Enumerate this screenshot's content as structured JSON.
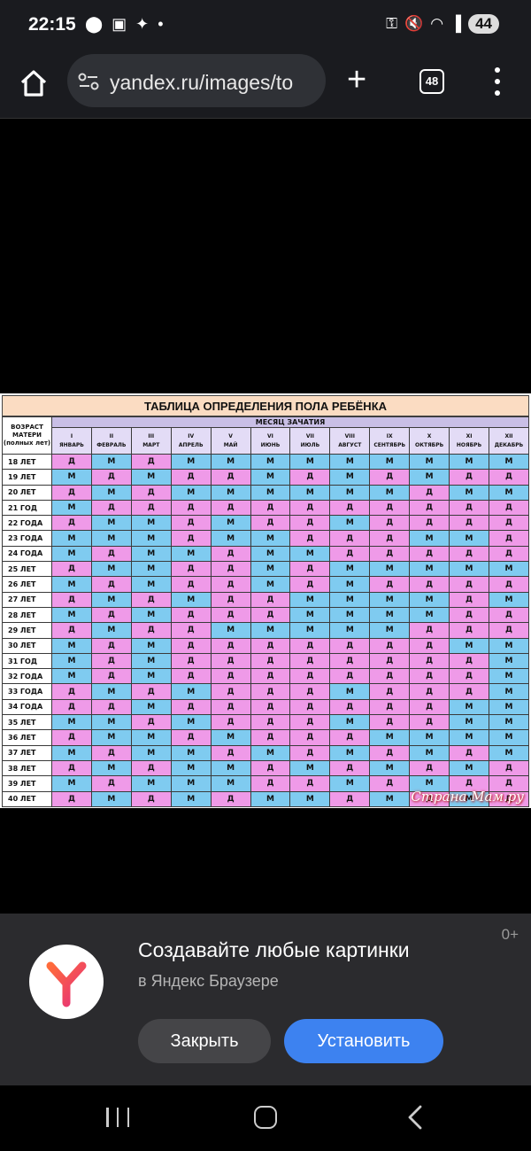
{
  "status_bar": {
    "time": "22:15",
    "battery": "44",
    "left_icons": [
      "multi-dot-icon",
      "screenshot-icon",
      "bird-icon",
      "dot-icon"
    ],
    "right_icons": [
      "key-icon",
      "mute-icon",
      "wifi-icon",
      "signal-icon"
    ]
  },
  "browser": {
    "url": "yandex.ru/images/to",
    "tabs_count": "48"
  },
  "chart": {
    "title": "ТАБЛИЦА ОПРЕДЕЛЕНИЯ ПОЛА РЕБЁНКА",
    "age_header": "ВОЗРАСТ МАТЕРИ (полных лет)",
    "month_header": "МЕСЯЦ ЗАЧАТИЯ",
    "months": [
      {
        "num": "I",
        "name": "ЯНВАРЬ"
      },
      {
        "num": "II",
        "name": "ФЕВРАЛЬ"
      },
      {
        "num": "III",
        "name": "МАРТ"
      },
      {
        "num": "IV",
        "name": "АПРЕЛЬ"
      },
      {
        "num": "V",
        "name": "МАЙ"
      },
      {
        "num": "VI",
        "name": "ИЮНЬ"
      },
      {
        "num": "VII",
        "name": "ИЮЛЬ"
      },
      {
        "num": "VIII",
        "name": "АВГУСТ"
      },
      {
        "num": "IX",
        "name": "СЕНТЯБРЬ"
      },
      {
        "num": "X",
        "name": "ОКТЯБРЬ"
      },
      {
        "num": "XI",
        "name": "НОЯБРЬ"
      },
      {
        "num": "XII",
        "name": "ДЕКАБРЬ"
      }
    ],
    "rows": [
      {
        "age": "18 ЛЕТ",
        "cells": [
          "Д",
          "М",
          "Д",
          "М",
          "М",
          "М",
          "М",
          "М",
          "М",
          "М",
          "М",
          "М"
        ]
      },
      {
        "age": "19 ЛЕТ",
        "cells": [
          "М",
          "Д",
          "М",
          "Д",
          "Д",
          "М",
          "Д",
          "М",
          "Д",
          "М",
          "Д",
          "Д"
        ]
      },
      {
        "age": "20 ЛЕТ",
        "cells": [
          "Д",
          "М",
          "Д",
          "М",
          "М",
          "М",
          "М",
          "М",
          "М",
          "Д",
          "М",
          "М"
        ]
      },
      {
        "age": "21 ГОД",
        "cells": [
          "М",
          "Д",
          "Д",
          "Д",
          "Д",
          "Д",
          "Д",
          "Д",
          "Д",
          "Д",
          "Д",
          "Д"
        ]
      },
      {
        "age": "22 ГОДА",
        "cells": [
          "Д",
          "М",
          "М",
          "Д",
          "М",
          "Д",
          "Д",
          "М",
          "Д",
          "Д",
          "Д",
          "Д"
        ]
      },
      {
        "age": "23 ГОДА",
        "cells": [
          "М",
          "М",
          "М",
          "Д",
          "М",
          "М",
          "Д",
          "Д",
          "Д",
          "М",
          "М",
          "Д"
        ]
      },
      {
        "age": "24 ГОДА",
        "cells": [
          "М",
          "Д",
          "М",
          "М",
          "Д",
          "М",
          "М",
          "Д",
          "Д",
          "Д",
          "Д",
          "Д"
        ]
      },
      {
        "age": "25 ЛЕТ",
        "cells": [
          "Д",
          "М",
          "М",
          "Д",
          "Д",
          "М",
          "Д",
          "М",
          "М",
          "М",
          "М",
          "М"
        ]
      },
      {
        "age": "26 ЛЕТ",
        "cells": [
          "М",
          "Д",
          "М",
          "Д",
          "Д",
          "М",
          "Д",
          "М",
          "Д",
          "Д",
          "Д",
          "Д"
        ]
      },
      {
        "age": "27 ЛЕТ",
        "cells": [
          "Д",
          "М",
          "Д",
          "М",
          "Д",
          "Д",
          "М",
          "М",
          "М",
          "М",
          "Д",
          "М"
        ]
      },
      {
        "age": "28 ЛЕТ",
        "cells": [
          "М",
          "Д",
          "М",
          "Д",
          "Д",
          "Д",
          "М",
          "М",
          "М",
          "М",
          "Д",
          "Д"
        ]
      },
      {
        "age": "29 ЛЕТ",
        "cells": [
          "Д",
          "М",
          "Д",
          "Д",
          "М",
          "М",
          "М",
          "М",
          "М",
          "Д",
          "Д",
          "Д"
        ]
      },
      {
        "age": "30 ЛЕТ",
        "cells": [
          "М",
          "Д",
          "М",
          "Д",
          "Д",
          "Д",
          "Д",
          "Д",
          "Д",
          "Д",
          "М",
          "М"
        ]
      },
      {
        "age": "31 ГОД",
        "cells": [
          "М",
          "Д",
          "М",
          "Д",
          "Д",
          "Д",
          "Д",
          "Д",
          "Д",
          "Д",
          "Д",
          "М"
        ]
      },
      {
        "age": "32 ГОДА",
        "cells": [
          "М",
          "Д",
          "М",
          "Д",
          "Д",
          "Д",
          "Д",
          "Д",
          "Д",
          "Д",
          "Д",
          "М"
        ]
      },
      {
        "age": "33 ГОДА",
        "cells": [
          "Д",
          "М",
          "Д",
          "М",
          "Д",
          "Д",
          "Д",
          "М",
          "Д",
          "Д",
          "Д",
          "М"
        ]
      },
      {
        "age": "34 ГОДА",
        "cells": [
          "Д",
          "Д",
          "М",
          "Д",
          "Д",
          "Д",
          "Д",
          "Д",
          "Д",
          "Д",
          "М",
          "М"
        ]
      },
      {
        "age": "35 ЛЕТ",
        "cells": [
          "М",
          "М",
          "Д",
          "М",
          "Д",
          "Д",
          "Д",
          "М",
          "Д",
          "Д",
          "М",
          "М"
        ]
      },
      {
        "age": "36 ЛЕТ",
        "cells": [
          "Д",
          "М",
          "М",
          "Д",
          "М",
          "Д",
          "Д",
          "Д",
          "М",
          "М",
          "М",
          "М"
        ]
      },
      {
        "age": "37 ЛЕТ",
        "cells": [
          "М",
          "Д",
          "М",
          "М",
          "Д",
          "М",
          "Д",
          "М",
          "Д",
          "М",
          "Д",
          "М"
        ]
      },
      {
        "age": "38 ЛЕТ",
        "cells": [
          "Д",
          "М",
          "Д",
          "М",
          "М",
          "Д",
          "М",
          "Д",
          "М",
          "Д",
          "М",
          "Д"
        ]
      },
      {
        "age": "39 ЛЕТ",
        "cells": [
          "М",
          "Д",
          "М",
          "М",
          "М",
          "Д",
          "Д",
          "М",
          "Д",
          "М",
          "Д",
          "Д"
        ]
      },
      {
        "age": "40 ЛЕТ",
        "cells": [
          "Д",
          "М",
          "Д",
          "М",
          "Д",
          "М",
          "М",
          "Д",
          "М",
          "Д",
          "М",
          "Д"
        ]
      }
    ],
    "watermark": "Страна Мам.ру",
    "colors": {
      "boy": "#7fcbf0",
      "girl": "#ef9ae8"
    }
  },
  "banner": {
    "age_rating": "0+",
    "title": "Создавайте любые картинки",
    "subtitle": "в Яндекс Браузере",
    "close_label": "Закрыть",
    "install_label": "Установить"
  }
}
